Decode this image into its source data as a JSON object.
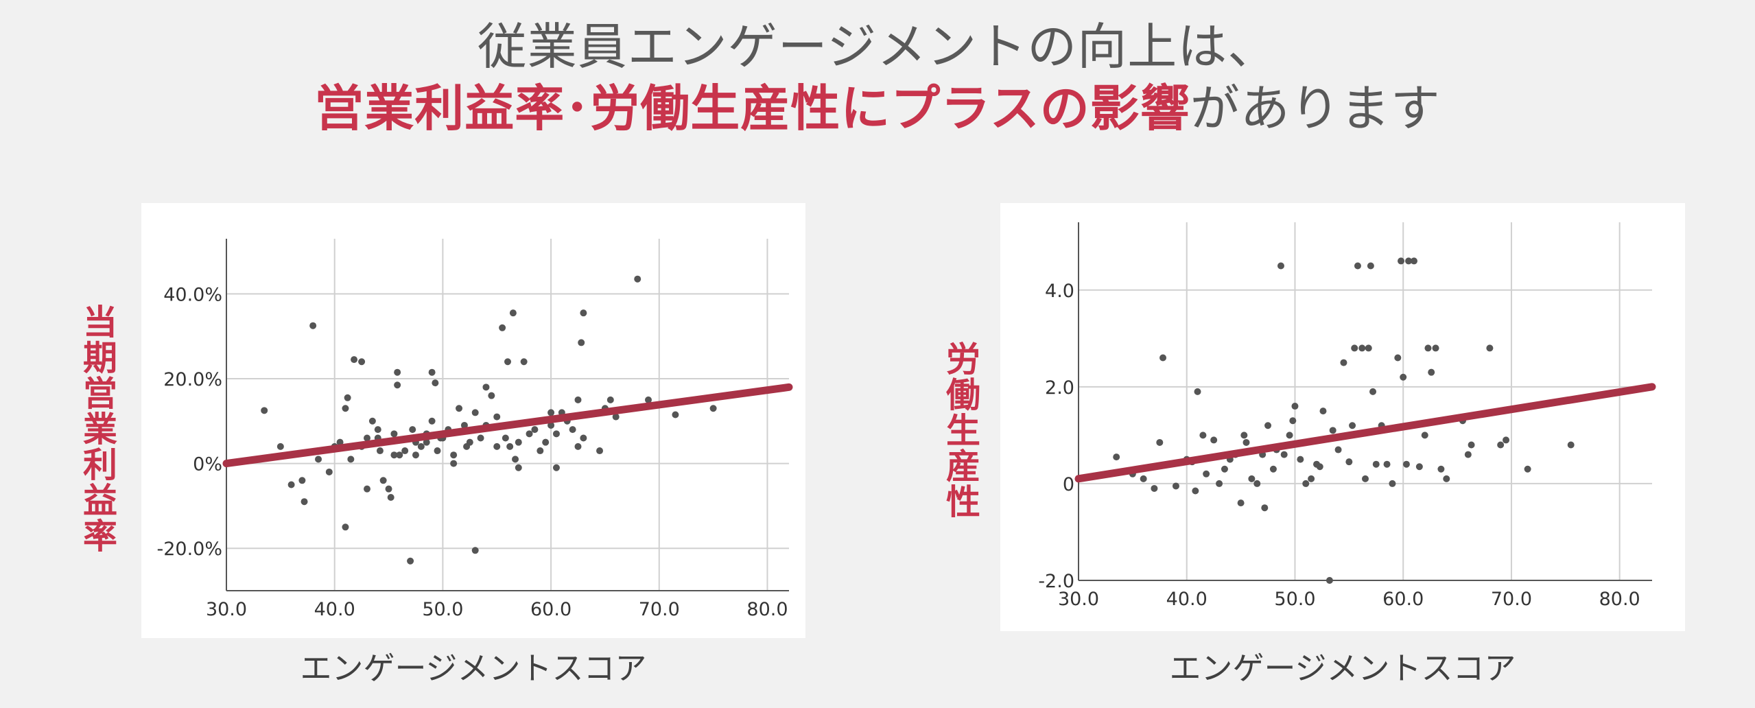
{
  "header": {
    "line1": "従業員エンゲージメントの向上は、",
    "line2_highlight": "営業利益率･労働生産性にプラスの影響",
    "line2_rest": "があります"
  },
  "colors": {
    "accent": "#c8344c",
    "trend": "#a83246",
    "point": "#555555",
    "grid": "#d0d0d0"
  },
  "chart_data": [
    {
      "type": "scatter",
      "title": "",
      "xlabel": "エンゲージメントスコア",
      "ylabel": "当期営業利益率",
      "xlim": [
        30,
        82
      ],
      "ylim": [
        -30,
        53
      ],
      "x_ticks": [
        30,
        40,
        50,
        60,
        70,
        80
      ],
      "x_tick_labels": [
        "30.0",
        "40.0",
        "50.0",
        "60.0",
        "70.0",
        "80.0"
      ],
      "y_ticks": [
        -20,
        0,
        20,
        40
      ],
      "y_tick_labels": [
        "-20.0%",
        "0%",
        "20.0%",
        "40.0%"
      ],
      "trend_line": {
        "x": [
          30,
          82
        ],
        "y": [
          0,
          18
        ]
      },
      "points": [
        [
          33.5,
          12.5
        ],
        [
          35,
          4
        ],
        [
          36,
          -5
        ],
        [
          37,
          -4
        ],
        [
          37.2,
          -9
        ],
        [
          38,
          32.5
        ],
        [
          38.5,
          1
        ],
        [
          39.5,
          -2
        ],
        [
          40,
          4
        ],
        [
          40.5,
          5
        ],
        [
          41,
          -15
        ],
        [
          41,
          13
        ],
        [
          41.2,
          15.5
        ],
        [
          41.5,
          1
        ],
        [
          41.8,
          24.5
        ],
        [
          42.5,
          24
        ],
        [
          42.5,
          4
        ],
        [
          43,
          6
        ],
        [
          43,
          -6
        ],
        [
          43.5,
          10
        ],
        [
          44,
          8
        ],
        [
          44,
          6
        ],
        [
          44.2,
          3
        ],
        [
          44.5,
          -4
        ],
        [
          45,
          -6
        ],
        [
          45.2,
          -8
        ],
        [
          45.5,
          7
        ],
        [
          45.5,
          2
        ],
        [
          45.8,
          18.5
        ],
        [
          45.8,
          21.5
        ],
        [
          46,
          2
        ],
        [
          46.5,
          3
        ],
        [
          47,
          -23
        ],
        [
          47.2,
          8
        ],
        [
          47.5,
          5
        ],
        [
          47.5,
          2
        ],
        [
          48,
          4
        ],
        [
          48.5,
          7
        ],
        [
          48.5,
          5
        ],
        [
          49,
          21.5
        ],
        [
          49,
          10
        ],
        [
          49.3,
          19
        ],
        [
          49.5,
          3
        ],
        [
          49.8,
          6
        ],
        [
          50,
          6
        ],
        [
          50.5,
          8
        ],
        [
          51,
          2
        ],
        [
          51,
          0
        ],
        [
          51.5,
          13
        ],
        [
          52,
          9
        ],
        [
          52.2,
          4
        ],
        [
          52.5,
          5
        ],
        [
          53,
          -20.5
        ],
        [
          53,
          12
        ],
        [
          53.5,
          6
        ],
        [
          54,
          9
        ],
        [
          54,
          18
        ],
        [
          54.5,
          16
        ],
        [
          55,
          11
        ],
        [
          55,
          4
        ],
        [
          55.5,
          32
        ],
        [
          55.8,
          6
        ],
        [
          56,
          24
        ],
        [
          56.2,
          4
        ],
        [
          56.5,
          35.5
        ],
        [
          56.7,
          1
        ],
        [
          57,
          -1
        ],
        [
          57,
          5
        ],
        [
          57.5,
          24
        ],
        [
          58,
          7
        ],
        [
          58.5,
          8
        ],
        [
          59,
          3
        ],
        [
          59.5,
          5
        ],
        [
          60,
          12
        ],
        [
          60,
          9
        ],
        [
          60.5,
          7
        ],
        [
          60.5,
          -1
        ],
        [
          61,
          12
        ],
        [
          61.5,
          10
        ],
        [
          62,
          8
        ],
        [
          62.5,
          15
        ],
        [
          62.5,
          4
        ],
        [
          62.8,
          28.5
        ],
        [
          63,
          35.5
        ],
        [
          63,
          6
        ],
        [
          64.5,
          3
        ],
        [
          65,
          13
        ],
        [
          65.5,
          15
        ],
        [
          66,
          11
        ],
        [
          68,
          43.5
        ],
        [
          69,
          15
        ],
        [
          71.5,
          11.5
        ],
        [
          75,
          13
        ]
      ]
    },
    {
      "type": "scatter",
      "title": "",
      "xlabel": "エンゲージメントスコア",
      "ylabel": "労働生産性",
      "xlim": [
        30,
        83
      ],
      "ylim": [
        -2,
        5.4
      ],
      "x_ticks": [
        30,
        40,
        50,
        60,
        70,
        80
      ],
      "x_tick_labels": [
        "30.0",
        "40.0",
        "50.0",
        "60.0",
        "70.0",
        "80.0"
      ],
      "y_ticks": [
        -2,
        0,
        2,
        4
      ],
      "y_tick_labels": [
        "-2.0",
        "0",
        "2.0",
        "4.0"
      ],
      "trend_line": {
        "x": [
          30,
          83
        ],
        "y": [
          0.1,
          2.0
        ]
      },
      "points": [
        [
          33.5,
          0.55
        ],
        [
          35,
          0.2
        ],
        [
          36,
          0.1
        ],
        [
          37,
          -0.1
        ],
        [
          37.5,
          0.85
        ],
        [
          37.8,
          2.6
        ],
        [
          39,
          -0.05
        ],
        [
          40,
          0.5
        ],
        [
          40.5,
          0.45
        ],
        [
          40.8,
          -0.15
        ],
        [
          41,
          1.9
        ],
        [
          41.5,
          1.0
        ],
        [
          41.8,
          0.2
        ],
        [
          42.5,
          0.9
        ],
        [
          43,
          0.0
        ],
        [
          43.5,
          0.3
        ],
        [
          44,
          0.5
        ],
        [
          44.5,
          0.6
        ],
        [
          45,
          -0.4
        ],
        [
          45.3,
          1.0
        ],
        [
          45.5,
          0.85
        ],
        [
          46,
          0.1
        ],
        [
          46.5,
          0.0
        ],
        [
          47,
          0.6
        ],
        [
          47.2,
          -0.5
        ],
        [
          47.5,
          1.2
        ],
        [
          48,
          0.3
        ],
        [
          48.3,
          0.7
        ],
        [
          48.7,
          4.5
        ],
        [
          49,
          0.6
        ],
        [
          49.5,
          1.0
        ],
        [
          49.8,
          1.3
        ],
        [
          50,
          1.6
        ],
        [
          50.5,
          0.5
        ],
        [
          51,
          0.0
        ],
        [
          51.5,
          0.1
        ],
        [
          52,
          0.4
        ],
        [
          52.3,
          0.35
        ],
        [
          52.6,
          1.5
        ],
        [
          53.2,
          -2.0
        ],
        [
          53.5,
          1.1
        ],
        [
          54,
          0.7
        ],
        [
          54.5,
          2.5
        ],
        [
          55,
          0.45
        ],
        [
          55.3,
          1.2
        ],
        [
          55.5,
          2.8
        ],
        [
          55.8,
          4.5
        ],
        [
          56.2,
          2.8
        ],
        [
          56.5,
          0.1
        ],
        [
          56.8,
          2.8
        ],
        [
          57,
          4.5
        ],
        [
          57.2,
          1.9
        ],
        [
          57.5,
          0.4
        ],
        [
          58,
          1.2
        ],
        [
          58.5,
          0.4
        ],
        [
          59,
          0.0
        ],
        [
          59.5,
          2.6
        ],
        [
          59.8,
          4.6
        ],
        [
          60,
          2.2
        ],
        [
          60.3,
          0.4
        ],
        [
          60.5,
          4.6
        ],
        [
          61,
          4.6
        ],
        [
          61.5,
          0.35
        ],
        [
          62,
          1.0
        ],
        [
          62.3,
          2.8
        ],
        [
          62.6,
          2.3
        ],
        [
          63,
          2.8
        ],
        [
          63.5,
          0.3
        ],
        [
          64,
          0.1
        ],
        [
          65.5,
          1.3
        ],
        [
          66,
          0.6
        ],
        [
          66.3,
          0.8
        ],
        [
          68,
          2.8
        ],
        [
          69,
          0.8
        ],
        [
          69.5,
          0.9
        ],
        [
          71.5,
          0.3
        ],
        [
          75.5,
          0.8
        ]
      ]
    }
  ]
}
